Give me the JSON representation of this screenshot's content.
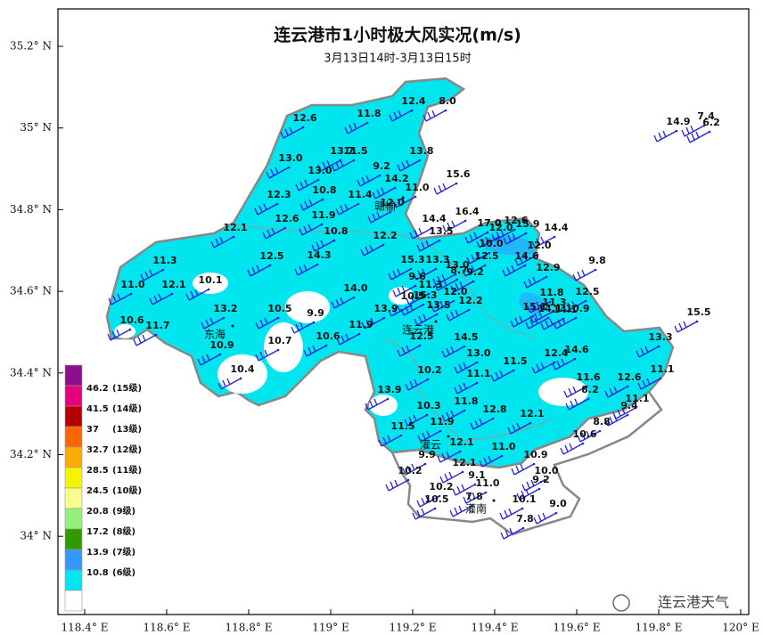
{
  "header": {
    "title": "连云港市1小时极大风实况(m/s)",
    "subtitle": "3月13日14时-3月13日15时"
  },
  "axes": {
    "xticks": [
      {
        "value": 118.4,
        "label": "118.4° E"
      },
      {
        "value": 118.6,
        "label": "118.6° E"
      },
      {
        "value": 118.8,
        "label": "118.8° E"
      },
      {
        "value": 119,
        "label": "119° E"
      },
      {
        "value": 119.2,
        "label": "119.2° E"
      },
      {
        "value": 119.4,
        "label": "119.4° E"
      },
      {
        "value": 119.6,
        "label": "119.6° E"
      },
      {
        "value": 119.8,
        "label": "119.8° E"
      },
      {
        "value": 120,
        "label": "120° E"
      }
    ],
    "yticks": [
      {
        "value": 35.2,
        "label": "35.2° N"
      },
      {
        "value": 35,
        "label": "35° N"
      },
      {
        "value": 34.8,
        "label": "34.8° N"
      },
      {
        "value": 34.6,
        "label": "34.6° N"
      },
      {
        "value": 34.4,
        "label": "34.4° N"
      },
      {
        "value": 34.2,
        "label": "34.2° N"
      },
      {
        "value": 34,
        "label": "34° N"
      }
    ]
  },
  "legend": [
    {
      "color": "#8e0f8e"
    },
    {
      "value": "46.2",
      "level": "(15级)",
      "color": "#e6007e"
    },
    {
      "value": "41.5",
      "level": "(14级)",
      "color": "#b40000"
    },
    {
      "value": "37",
      "level": "(13级)",
      "color": "#ff6600"
    },
    {
      "value": "32.7",
      "level": "(12级)",
      "color": "#ffaa00"
    },
    {
      "value": "28.5",
      "level": "(11级)",
      "color": "#f5f500"
    },
    {
      "value": "24.5",
      "level": "(10级)",
      "color": "#f5ff8c"
    },
    {
      "value": "20.8",
      "level": "(9级)",
      "color": "#96f07d"
    },
    {
      "value": "17.2",
      "level": "(8级)",
      "color": "#339900"
    },
    {
      "value": "13.9",
      "level": "(7级)",
      "color": "#3399ff"
    },
    {
      "value": "10.8",
      "level": "(6级)",
      "color": "#00e5ee"
    }
  ],
  "stations": [
    "12.4",
    "8.0",
    "11.8",
    "12.6",
    "14.9",
    "7.4",
    "6.2",
    "13.0",
    "13.7",
    "11.5",
    "13.8",
    "9.2",
    "13.0",
    "15.6",
    "14.2",
    "11.0",
    "12.3",
    "10.8",
    "11.4",
    "12.0",
    "16.4",
    "11.9",
    "12.6",
    "14.4",
    "17.0",
    "12.6",
    "15.9",
    "14.4",
    "12.1",
    "10.8",
    "13.5",
    "12.0",
    "12.2",
    "10.0",
    "12.0",
    "14.3",
    "12.5",
    "12.5",
    "14.6",
    "11.3",
    "15.3",
    "13.3",
    "13.0",
    "8.7",
    "9.2",
    "9.8",
    "12.9",
    "10.1",
    "9.6",
    "11.0",
    "12.1",
    "11.3",
    "14.0",
    "12.0",
    "11.8",
    "12.5",
    "10.5",
    "15.3",
    "13.5",
    "12.2",
    "11.3",
    "13.2",
    "10.5",
    "9.9",
    "13.9",
    "15.1",
    "14.1",
    "14.1",
    "10.9",
    "15.5",
    "10.6",
    "11.7",
    "11.9",
    "12.5",
    "10.6",
    "10.7",
    "10.9",
    "14.5",
    "13.3",
    "14.6",
    "12.4",
    "13.0",
    "11.5",
    "10.4",
    "10.2",
    "11.1",
    "11.6",
    "12.6",
    "11.1",
    "13.9",
    "8.2",
    "11.8",
    "10.3",
    "12.8",
    "11.1",
    "12.1",
    "9.4",
    "8.8",
    "11.9",
    "11.5",
    "10.6",
    "12.1",
    "11.0",
    "9.9",
    "10.9",
    "12.1",
    "10.0",
    "10.2",
    "9.2",
    "9.1",
    "11.0",
    "10.2",
    "10.5",
    "7.8",
    "10.1",
    "9.0",
    "7.8"
  ],
  "places": [
    "赣榆",
    "东海",
    "连云港",
    "灌云",
    "灌南"
  ],
  "watermark": "连云港天气"
}
